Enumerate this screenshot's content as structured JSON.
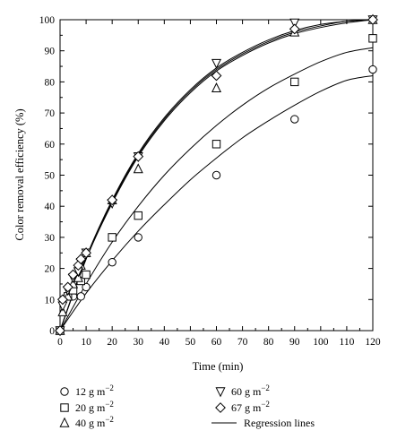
{
  "chart_data": {
    "type": "scatter",
    "xlabel": "Time (min)",
    "ylabel": "Color removal efficiency (%)",
    "xlim": [
      0,
      120
    ],
    "ylim": [
      0,
      100
    ],
    "xticks": [
      "0",
      "10",
      "20",
      "30",
      "40",
      "50",
      "60",
      "70",
      "80",
      "90",
      "100",
      "110",
      "120"
    ],
    "yticks": [
      "0",
      "10",
      "20",
      "30",
      "40",
      "50",
      "60",
      "70",
      "80",
      "90",
      "100"
    ],
    "grid": false,
    "legend_position": "bottom",
    "series": [
      {
        "name": "12 g m−2",
        "marker": "circle",
        "x": [
          0,
          5,
          8,
          10,
          20,
          30,
          60,
          90,
          120
        ],
        "y": [
          0,
          11,
          11,
          14,
          22,
          30,
          50,
          68,
          84
        ]
      },
      {
        "name": "20 g m−2",
        "marker": "square",
        "x": [
          0,
          3,
          5,
          8,
          10,
          20,
          30,
          60,
          90,
          120
        ],
        "y": [
          0,
          11,
          13,
          16,
          18,
          30,
          37,
          60,
          80,
          94
        ]
      },
      {
        "name": "40 g m−2",
        "marker": "triangle-up",
        "x": [
          0,
          1,
          3,
          5,
          7,
          8,
          10,
          20,
          30,
          60,
          90,
          120
        ],
        "y": [
          0,
          6,
          11,
          15,
          17,
          21,
          25,
          42,
          52,
          78,
          96,
          100
        ]
      },
      {
        "name": "60 g m−2",
        "marker": "triangle-down",
        "x": [
          0,
          1,
          3,
          5,
          7,
          8,
          10,
          20,
          30,
          60,
          90,
          120
        ],
        "y": [
          0,
          8,
          13,
          17,
          19,
          22,
          25,
          41,
          56,
          86,
          99,
          100
        ]
      },
      {
        "name": "67 g m−2",
        "marker": "diamond",
        "x": [
          0,
          1,
          3,
          5,
          7,
          8,
          10,
          20,
          30,
          60,
          90,
          120
        ],
        "y": [
          0,
          10,
          14,
          18,
          21,
          23,
          25,
          42,
          56,
          82,
          97,
          100
        ]
      }
    ],
    "regression_lines": [
      {
        "series": "12 g m−2",
        "x": [
          0,
          10,
          20,
          30,
          40,
          50,
          60,
          70,
          80,
          90,
          100,
          110,
          120
        ],
        "y": [
          0,
          12,
          22.5,
          32,
          40.5,
          48.5,
          55.5,
          62,
          67.5,
          72.5,
          77,
          80.5,
          82
        ]
      },
      {
        "series": "20 g m−2",
        "x": [
          0,
          10,
          20,
          30,
          40,
          50,
          60,
          70,
          80,
          90,
          100,
          110,
          120
        ],
        "y": [
          0,
          15,
          28.5,
          40,
          50,
          58.5,
          66,
          72.5,
          78,
          82.5,
          86.5,
          89.5,
          91
        ]
      },
      {
        "series": "40 g m−2",
        "x": [
          0,
          10,
          20,
          30,
          40,
          50,
          60,
          70,
          80,
          90,
          100,
          110,
          120
        ],
        "y": [
          0,
          23,
          41,
          56,
          67.5,
          76.5,
          83.5,
          88.5,
          92.5,
          95.5,
          97.5,
          99,
          100
        ]
      },
      {
        "series": "60 g m−2",
        "x": [
          0,
          10,
          20,
          30,
          40,
          50,
          60,
          70,
          80,
          90,
          100,
          110,
          120
        ],
        "y": [
          0,
          23.5,
          42,
          57,
          68.5,
          77.5,
          84.5,
          89.5,
          93.5,
          96.5,
          98.5,
          99.5,
          100
        ]
      },
      {
        "series": "67 g m−2",
        "x": [
          0,
          10,
          20,
          30,
          40,
          50,
          60,
          70,
          80,
          90,
          100,
          110,
          120
        ],
        "y": [
          0,
          23,
          41.5,
          56.5,
          68,
          77,
          84,
          89,
          93,
          96,
          98,
          99.5,
          100
        ]
      }
    ],
    "legend": {
      "entries": [
        {
          "marker": "circle",
          "label": "12 g m",
          "exp": "−2"
        },
        {
          "marker": "triangle-down",
          "label": "60 g m",
          "exp": "−2"
        },
        {
          "marker": "square",
          "label": "20 g m",
          "exp": "−2"
        },
        {
          "marker": "diamond",
          "label": "67 g m",
          "exp": "−2"
        },
        {
          "marker": "triangle-up",
          "label": "40 g m",
          "exp": "−2"
        },
        {
          "marker": "line",
          "label": "Regression lines",
          "exp": ""
        }
      ]
    }
  }
}
